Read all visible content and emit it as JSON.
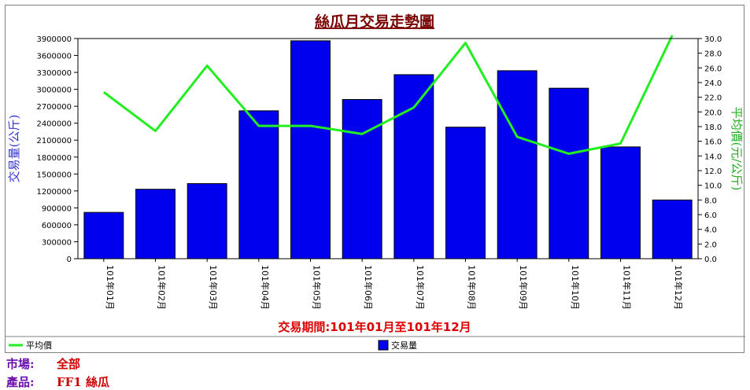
{
  "chart_data": {
    "type": "bar+line",
    "title": "絲瓜月交易走勢圖",
    "xlabel": "交易期間:101年01月至101年12月",
    "ylabel_left": "交易量(公斤)",
    "ylabel_right": "平均價(元/公斤)",
    "categories": [
      "101年01月",
      "101年02月",
      "101年03月",
      "101年04月",
      "101年05月",
      "101年06月",
      "101年07月",
      "101年08月",
      "101年09月",
      "101年10月",
      "101年11月",
      "101年12月"
    ],
    "series": [
      {
        "name": "交易量",
        "type": "bar",
        "axis": "left",
        "color": "#0000ee",
        "values": [
          820000,
          1230000,
          1330000,
          2620000,
          3860000,
          2820000,
          3260000,
          2330000,
          3330000,
          3020000,
          1980000,
          1040000
        ]
      },
      {
        "name": "平均價",
        "type": "line",
        "axis": "right",
        "color": "#22ee22",
        "values": [
          22.7,
          17.4,
          26.3,
          18.1,
          18.1,
          17.0,
          20.6,
          29.4,
          16.6,
          14.3,
          15.7,
          31.0
        ]
      }
    ],
    "ylim_left": [
      0,
      3900000
    ],
    "yticks_left": [
      "0",
      "300000",
      "600000",
      "900000",
      "1200000",
      "1500000",
      "1800000",
      "2100000",
      "2400000",
      "2700000",
      "3000000",
      "3300000",
      "3600000",
      "3900000"
    ],
    "ylim_right": [
      0,
      30
    ],
    "yticks_right": [
      "0.0",
      "2.0",
      "4.0",
      "6.0",
      "8.0",
      "10.0",
      "12.0",
      "14.0",
      "16.0",
      "18.0",
      "20.0",
      "22.0",
      "24.0",
      "26.0",
      "28.0",
      "30.0"
    ],
    "legend_placement": "bottom",
    "grid": false
  },
  "info": {
    "market_label": "市場:",
    "market_value": "全部",
    "product_label": "產品:",
    "product_value": "FF1 絲瓜"
  }
}
